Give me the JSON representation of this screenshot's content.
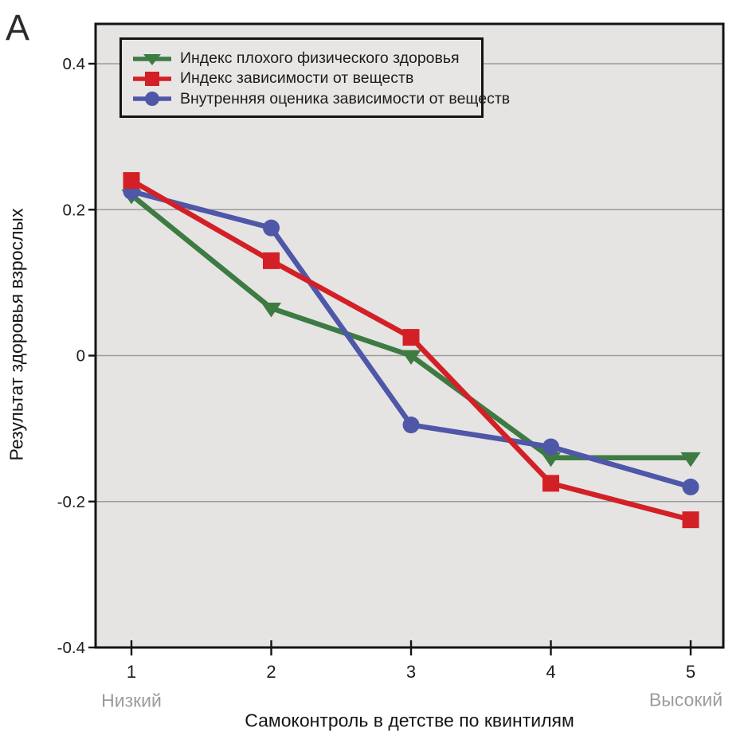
{
  "panel_label": "A",
  "colors": {
    "plot_background": "#e5e4e2",
    "legend_background": "#e7e6e4",
    "grid": "#9b9b9b",
    "frame": "#141414",
    "text": "#1d1d1d",
    "muted_text": "#9c9c9c",
    "series_green": "#3d7b43",
    "series_red": "#d32027",
    "series_blue": "#4e57a8"
  },
  "chart_data": {
    "type": "line",
    "title": "",
    "xlabel": "Самоконтроль в детстве по квинтилям",
    "ylabel": "Результат здоровья взрослых",
    "x": [
      1,
      2,
      3,
      4,
      5
    ],
    "x_tick_labels": [
      "1",
      "2",
      "3",
      "4",
      "5"
    ],
    "x_end_labels": {
      "low": "Низкий",
      "high": "Высокий"
    },
    "y_ticks": [
      0.4,
      0.2,
      0,
      -0.2,
      -0.4
    ],
    "y_tick_labels": [
      "0.4",
      "0.2",
      "0",
      "-0.2",
      "-0.4"
    ],
    "ylim": [
      -0.4,
      0.455
    ],
    "xlim": [
      0.75,
      5.25
    ],
    "grid": "horizontal",
    "legend_position": "top-left",
    "series": [
      {
        "name": "Индекс плохого физического здоровья",
        "color": "#3d7b43",
        "marker": "triangle-down",
        "values": [
          0.22,
          0.065,
          0,
          -0.14,
          -0.14
        ]
      },
      {
        "name": "Индекс зависимости от веществ",
        "color": "#d32027",
        "marker": "square",
        "values": [
          0.24,
          0.13,
          0.025,
          -0.175,
          -0.225
        ]
      },
      {
        "name": "Внутренняя оценика зависимости от веществ",
        "color": "#4e57a8",
        "marker": "circle",
        "values": [
          0.225,
          0.175,
          -0.095,
          -0.125,
          -0.18
        ]
      }
    ]
  }
}
